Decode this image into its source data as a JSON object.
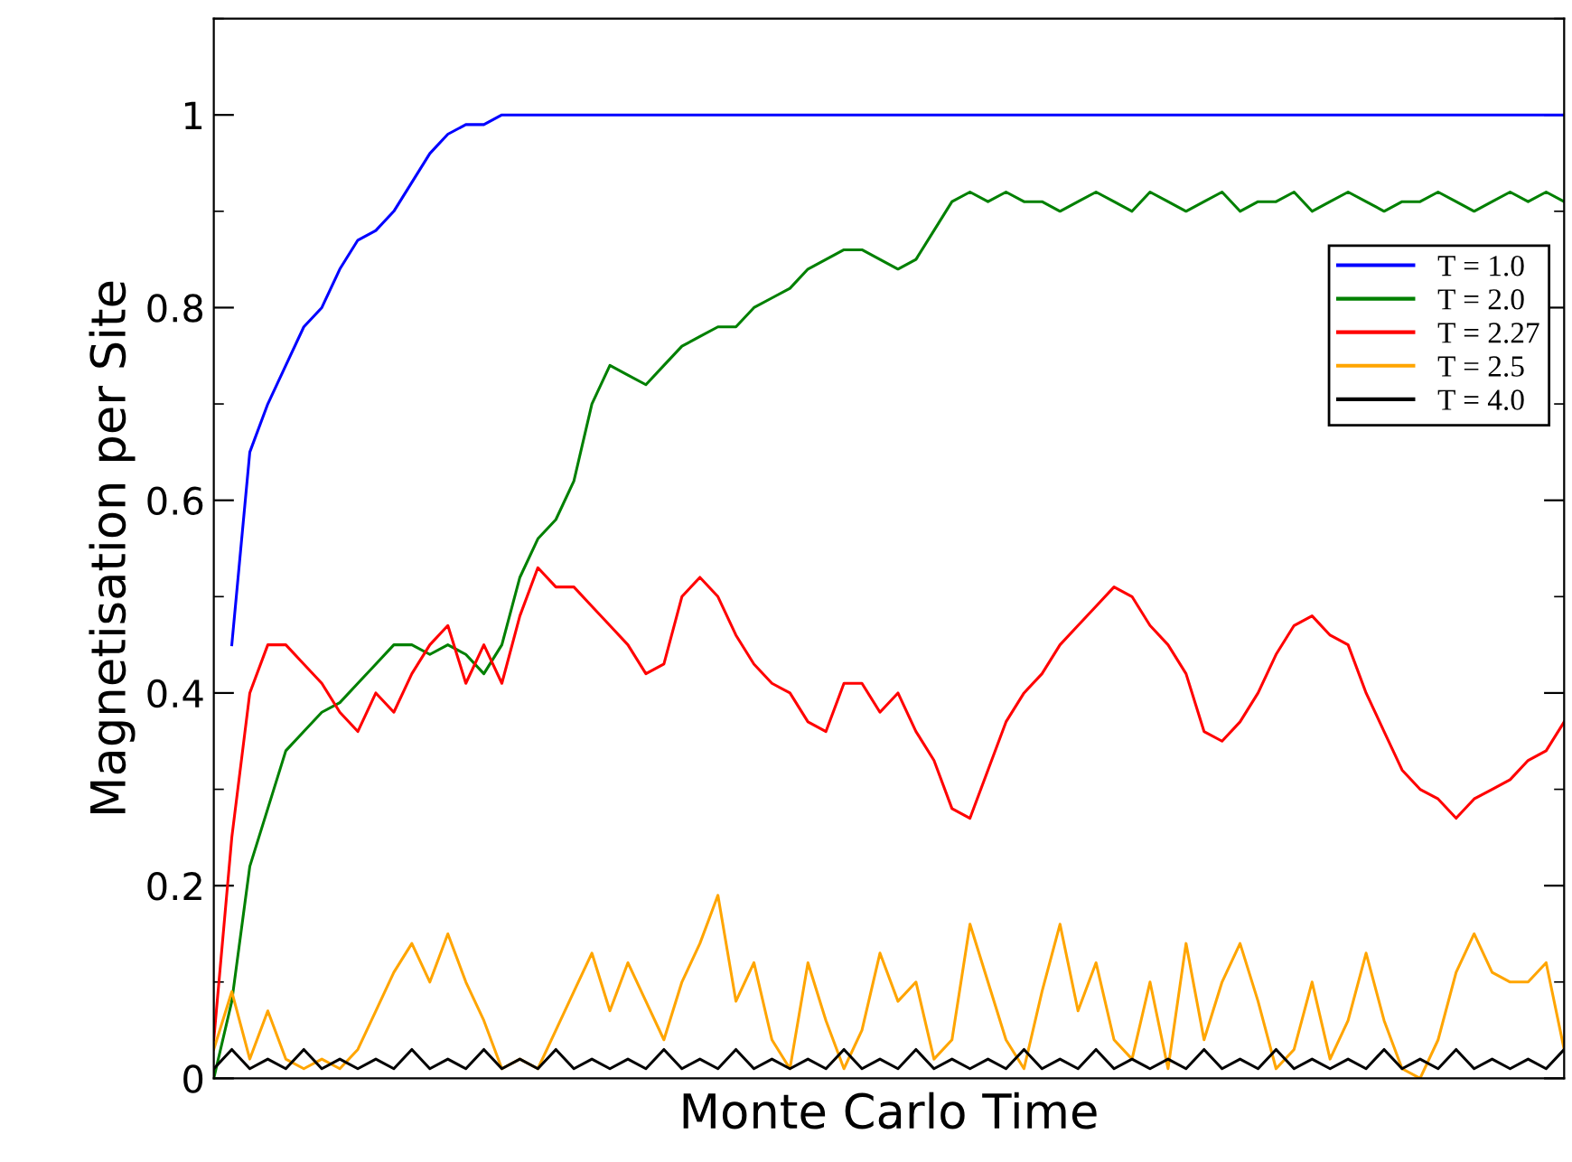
{
  "chart_data": {
    "type": "line",
    "xlabel": "Monte Carlo Time",
    "ylabel": "Magnetisation per Site",
    "categories": [
      null,
      null,
      null,
      null,
      null,
      null,
      null,
      null,
      null,
      null,
      null,
      null,
      null,
      null,
      null,
      null,
      null,
      null,
      null,
      null,
      null,
      null,
      null,
      null,
      null,
      null,
      null,
      null,
      null,
      null,
      null,
      null,
      null,
      null,
      null,
      null,
      null,
      null,
      null,
      null,
      null,
      null,
      null,
      null,
      null,
      null,
      null,
      null,
      null,
      null,
      null,
      null,
      null,
      null,
      null,
      null,
      null,
      null,
      null,
      null,
      null,
      null,
      null,
      null,
      null,
      null,
      null,
      null,
      null,
      null,
      null,
      null,
      null,
      null,
      null,
      null
    ],
    "series": [
      {
        "name": "T = 1.0",
        "color": "#0000ff",
        "values": [
          null,
          0.45,
          0.65,
          0.7,
          0.74,
          0.78,
          0.8,
          0.84,
          0.87,
          0.88,
          0.9,
          0.93,
          0.96,
          0.98,
          0.99,
          0.99,
          1.0,
          1.0,
          1.0,
          1.0,
          1.0,
          1.0,
          1.0,
          1.0,
          1.0,
          1.0,
          1.0,
          1.0,
          1.0,
          1.0,
          1.0,
          1.0,
          1.0,
          1.0,
          1.0,
          1.0,
          1.0,
          1.0,
          1.0,
          1.0,
          1.0,
          1.0,
          1.0,
          1.0,
          1.0,
          1.0,
          1.0,
          1.0,
          1.0,
          1.0,
          1.0,
          1.0,
          1.0,
          1.0,
          1.0,
          1.0,
          1.0,
          1.0,
          1.0,
          1.0,
          1.0,
          1.0,
          1.0,
          1.0,
          1.0,
          1.0,
          1.0,
          1.0,
          1.0,
          1.0,
          1.0,
          1.0,
          1.0,
          1.0,
          1.0,
          1.0
        ]
      },
      {
        "name": "T = 2.0",
        "color": "#008000",
        "values": [
          0.0,
          0.08,
          0.22,
          0.28,
          0.34,
          0.36,
          0.38,
          0.39,
          0.41,
          0.43,
          0.45,
          0.45,
          0.44,
          0.45,
          0.44,
          0.42,
          0.45,
          0.52,
          0.56,
          0.58,
          0.62,
          0.7,
          0.74,
          0.73,
          0.72,
          0.74,
          0.76,
          0.77,
          0.78,
          0.78,
          0.8,
          0.81,
          0.82,
          0.84,
          0.85,
          0.86,
          0.86,
          0.85,
          0.84,
          0.85,
          0.88,
          0.91,
          0.92,
          0.91,
          0.92,
          0.91,
          0.91,
          0.9,
          0.91,
          0.92,
          0.91,
          0.9,
          0.92,
          0.91,
          0.9,
          0.91,
          0.92,
          0.9,
          0.91,
          0.91,
          0.92,
          0.9,
          0.91,
          0.92,
          0.91,
          0.9,
          0.91,
          0.91,
          0.92,
          0.91,
          0.9,
          0.91,
          0.92,
          0.91,
          0.92,
          0.91
        ]
      },
      {
        "name": "T = 2.27",
        "color": "#ff0000",
        "values": [
          0.04,
          0.25,
          0.4,
          0.45,
          0.45,
          0.43,
          0.41,
          0.38,
          0.36,
          0.4,
          0.38,
          0.42,
          0.45,
          0.47,
          0.41,
          0.45,
          0.41,
          0.48,
          0.53,
          0.51,
          0.51,
          0.49,
          0.47,
          0.45,
          0.42,
          0.43,
          0.5,
          0.52,
          0.5,
          0.46,
          0.43,
          0.41,
          0.4,
          0.37,
          0.36,
          0.41,
          0.41,
          0.38,
          0.4,
          0.36,
          0.33,
          0.28,
          0.27,
          0.32,
          0.37,
          0.4,
          0.42,
          0.45,
          0.47,
          0.49,
          0.51,
          0.5,
          0.47,
          0.45,
          0.42,
          0.36,
          0.35,
          0.37,
          0.4,
          0.44,
          0.47,
          0.48,
          0.46,
          0.45,
          0.4,
          0.36,
          0.32,
          0.3,
          0.29,
          0.27,
          0.29,
          0.3,
          0.31,
          0.33,
          0.34,
          0.37
        ]
      },
      {
        "name": "T = 2.5",
        "color": "#ffa500",
        "values": [
          0.03,
          0.09,
          0.02,
          0.07,
          0.02,
          0.01,
          0.02,
          0.01,
          0.03,
          0.07,
          0.11,
          0.14,
          0.1,
          0.15,
          0.1,
          0.06,
          0.01,
          0.02,
          0.01,
          0.05,
          0.09,
          0.13,
          0.07,
          0.12,
          0.08,
          0.04,
          0.1,
          0.14,
          0.19,
          0.08,
          0.12,
          0.04,
          0.01,
          0.12,
          0.06,
          0.01,
          0.05,
          0.13,
          0.08,
          0.1,
          0.02,
          0.04,
          0.16,
          0.1,
          0.04,
          0.01,
          0.09,
          0.16,
          0.07,
          0.12,
          0.04,
          0.02,
          0.1,
          0.01,
          0.14,
          0.04,
          0.1,
          0.14,
          0.08,
          0.01,
          0.03,
          0.1,
          0.02,
          0.06,
          0.13,
          0.06,
          0.01,
          0.0,
          0.04,
          0.11,
          0.15,
          0.11,
          0.1,
          0.1,
          0.12,
          0.03
        ]
      },
      {
        "name": "T = 4.0",
        "color": "#000000",
        "values": [
          0.01,
          0.03,
          0.01,
          0.02,
          0.01,
          0.03,
          0.01,
          0.02,
          0.01,
          0.02,
          0.01,
          0.03,
          0.01,
          0.02,
          0.01,
          0.03,
          0.01,
          0.02,
          0.01,
          0.03,
          0.01,
          0.02,
          0.01,
          0.02,
          0.01,
          0.03,
          0.01,
          0.02,
          0.01,
          0.03,
          0.01,
          0.02,
          0.01,
          0.02,
          0.01,
          0.03,
          0.01,
          0.02,
          0.01,
          0.03,
          0.01,
          0.02,
          0.01,
          0.02,
          0.01,
          0.03,
          0.01,
          0.02,
          0.01,
          0.03,
          0.01,
          0.02,
          0.01,
          0.02,
          0.01,
          0.03,
          0.01,
          0.02,
          0.01,
          0.03,
          0.01,
          0.02,
          0.01,
          0.02,
          0.01,
          0.03,
          0.01,
          0.02,
          0.01,
          0.03,
          0.01,
          0.02,
          0.01,
          0.02,
          0.01,
          0.03
        ]
      }
    ],
    "ylim": [
      0,
      1.1
    ],
    "yticks": [
      0,
      0.2,
      0.4,
      0.6,
      0.8,
      1
    ],
    "grid": false,
    "legend": "top right",
    "marker": "none",
    "line_style": "solid"
  }
}
